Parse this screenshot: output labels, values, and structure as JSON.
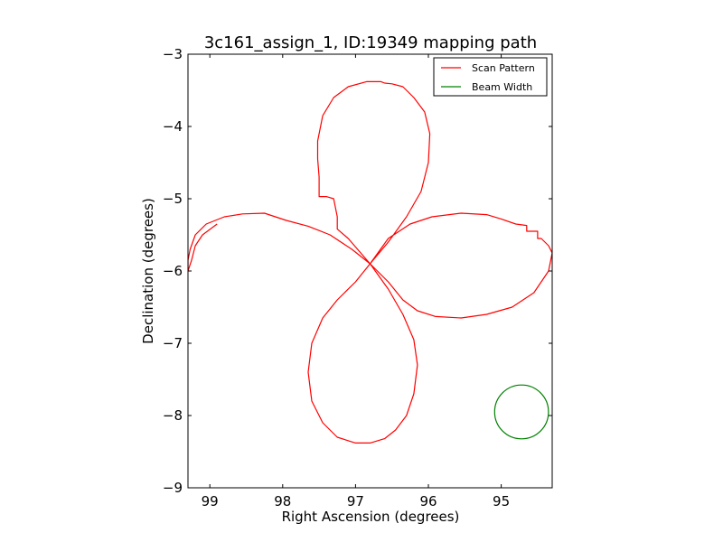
{
  "chart_data": {
    "type": "line",
    "title": "3c161_assign_1, ID:19349 mapping path",
    "xlabel": "Right Ascension (degrees)",
    "ylabel": "Declination (degrees)",
    "xlim": [
      99.3,
      94.3
    ],
    "ylim": [
      -9,
      -3
    ],
    "x_inverted": true,
    "xticks": [
      99,
      98,
      97,
      96,
      95
    ],
    "xtick_labels": [
      "99",
      "98",
      "97",
      "96",
      "95"
    ],
    "yticks": [
      -3,
      -4,
      -5,
      -6,
      -7,
      -8,
      -9
    ],
    "ytick_labels": [
      "−3",
      "−4",
      "−5",
      "−6",
      "−7",
      "−8",
      "−9"
    ],
    "grid": false,
    "legend_position": "top-right",
    "series": [
      {
        "name": "Scan Pattern",
        "color": "#ff0000",
        "points": [
          [
            96.8,
            -5.9
          ],
          [
            96.55,
            -5.6
          ],
          [
            96.3,
            -5.25
          ],
          [
            96.1,
            -4.9
          ],
          [
            96.0,
            -4.5
          ],
          [
            95.98,
            -4.1
          ],
          [
            96.05,
            -3.8
          ],
          [
            96.2,
            -3.6
          ],
          [
            96.35,
            -3.45
          ],
          [
            96.5,
            -3.41
          ],
          [
            96.6,
            -3.4
          ],
          [
            96.65,
            -3.38
          ],
          [
            96.85,
            -3.38
          ],
          [
            97.1,
            -3.45
          ],
          [
            97.3,
            -3.6
          ],
          [
            97.45,
            -3.85
          ],
          [
            97.52,
            -4.2
          ],
          [
            97.52,
            -4.45
          ],
          [
            97.5,
            -4.7
          ],
          [
            97.5,
            -4.97
          ],
          [
            97.4,
            -4.97
          ],
          [
            97.3,
            -5.0
          ],
          [
            97.25,
            -5.25
          ],
          [
            97.25,
            -5.42
          ],
          [
            97.1,
            -5.55
          ],
          [
            96.8,
            -5.9
          ],
          [
            96.55,
            -6.15
          ],
          [
            96.35,
            -6.4
          ],
          [
            96.15,
            -6.55
          ],
          [
            95.9,
            -6.63
          ],
          [
            95.55,
            -6.65
          ],
          [
            95.2,
            -6.6
          ],
          [
            94.85,
            -6.5
          ],
          [
            94.55,
            -6.3
          ],
          [
            94.35,
            -6.0
          ],
          [
            94.3,
            -5.75
          ],
          [
            94.35,
            -5.65
          ],
          [
            94.45,
            -5.55
          ],
          [
            94.5,
            -5.55
          ],
          [
            94.5,
            -5.45
          ],
          [
            94.65,
            -5.45
          ],
          [
            94.65,
            -5.37
          ],
          [
            94.8,
            -5.35
          ],
          [
            95.0,
            -5.28
          ],
          [
            95.2,
            -5.22
          ],
          [
            95.55,
            -5.2
          ],
          [
            95.95,
            -5.25
          ],
          [
            96.25,
            -5.35
          ],
          [
            96.55,
            -5.55
          ],
          [
            96.8,
            -5.9
          ],
          [
            97.0,
            -6.15
          ],
          [
            97.25,
            -6.4
          ],
          [
            97.45,
            -6.65
          ],
          [
            97.6,
            -7.0
          ],
          [
            97.65,
            -7.4
          ],
          [
            97.6,
            -7.8
          ],
          [
            97.45,
            -8.1
          ],
          [
            97.25,
            -8.3
          ],
          [
            97.0,
            -8.38
          ],
          [
            96.8,
            -8.38
          ],
          [
            96.6,
            -8.32
          ],
          [
            96.45,
            -8.2
          ],
          [
            96.3,
            -8.0
          ],
          [
            96.2,
            -7.7
          ],
          [
            96.15,
            -7.3
          ],
          [
            96.2,
            -6.95
          ],
          [
            96.35,
            -6.6
          ],
          [
            96.55,
            -6.25
          ],
          [
            96.8,
            -5.9
          ],
          [
            97.05,
            -5.7
          ],
          [
            97.35,
            -5.5
          ],
          [
            97.65,
            -5.38
          ],
          [
            97.95,
            -5.3
          ],
          [
            98.25,
            -5.2
          ],
          [
            98.55,
            -5.21
          ],
          [
            98.8,
            -5.25
          ],
          [
            99.05,
            -5.35
          ],
          [
            99.2,
            -5.5
          ],
          [
            99.27,
            -5.7
          ],
          [
            99.3,
            -5.85
          ],
          [
            99.3,
            -6.0
          ],
          [
            99.25,
            -5.85
          ],
          [
            99.2,
            -5.65
          ],
          [
            99.1,
            -5.5
          ],
          [
            98.9,
            -5.35
          ]
        ]
      },
      {
        "name": "Beam Width",
        "color": "#008000",
        "shape": "circle",
        "center": [
          94.72,
          -7.95
        ],
        "radius_deg": 0.37
      }
    ]
  }
}
